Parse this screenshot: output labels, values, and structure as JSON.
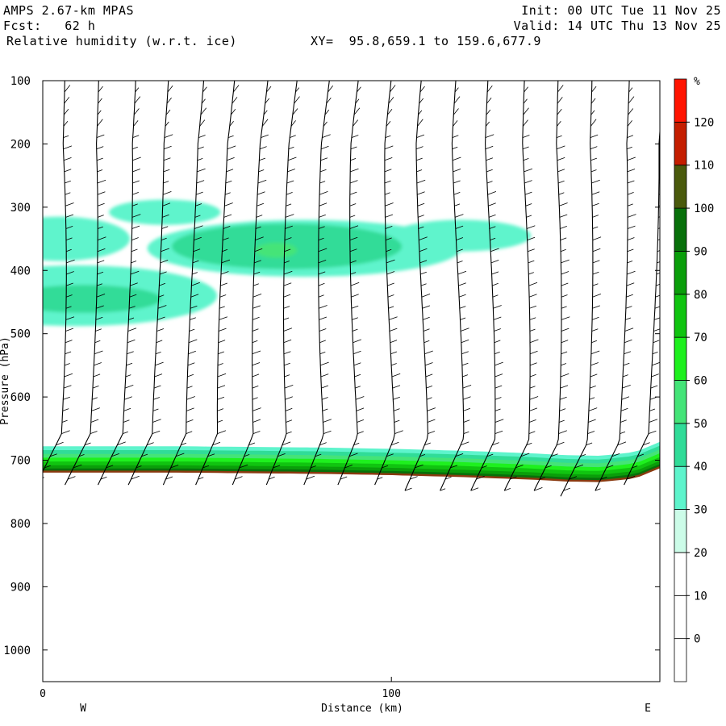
{
  "header": {
    "model": "AMPS 2.67-km MPAS",
    "fcst": "Fcst:   62 h",
    "field": "Relative humidity (w.r.t. ice)",
    "xy": "XY=  95.8,659.1 to 159.6,677.9",
    "init": "Init: 00 UTC Tue 11 Nov 25",
    "valid": "Valid: 14 UTC Thu 13 Nov 25"
  },
  "chart_data": {
    "type": "heatmap",
    "title": "Relative humidity (w.r.t. ice)",
    "xlabel": "Distance (km)",
    "ylabel": "Pressure (hPa)",
    "xlim": [
      0,
      177
    ],
    "ylim": [
      1050,
      100
    ],
    "x_ticks": [
      {
        "value": 0,
        "label": "0"
      },
      {
        "value": 100,
        "label": "100"
      }
    ],
    "y_ticks": [
      {
        "value": 100,
        "label": "100"
      },
      {
        "value": 200,
        "label": "200"
      },
      {
        "value": 300,
        "label": "300"
      },
      {
        "value": 400,
        "label": "400"
      },
      {
        "value": 500,
        "label": "500"
      },
      {
        "value": 600,
        "label": "600"
      },
      {
        "value": 700,
        "label": "700"
      },
      {
        "value": 800,
        "label": "800"
      },
      {
        "value": 900,
        "label": "900"
      },
      {
        "value": 1000,
        "label": "1000"
      }
    ],
    "west_label": "W",
    "east_label": "E",
    "colorbar": {
      "unit": "%",
      "bounds": [
        -10,
        0,
        10,
        20,
        30,
        40,
        50,
        60,
        70,
        80,
        90,
        100,
        110,
        120,
        130
      ],
      "labels": [
        "0",
        "10",
        "20",
        "30",
        "40",
        "50",
        "60",
        "70",
        "80",
        "90",
        "100",
        "110",
        "120"
      ],
      "colors": [
        "#ffffff",
        "#ffffff",
        "#ffffff",
        "#ccfce8",
        "#5ef4cc",
        "#30dc98",
        "#44e478",
        "#1ef01e",
        "#10c410",
        "#0a9e0a",
        "#08700a",
        "#4a5a0c",
        "#c41e00",
        "#ff1400"
      ]
    },
    "terrain": {
      "distance_km": [
        0,
        20,
        40,
        60,
        80,
        100,
        120,
        140,
        150,
        160,
        170,
        177
      ],
      "surface_pressure_hpa": [
        718,
        718,
        718,
        719,
        720,
        722,
        725,
        729,
        732,
        733,
        727,
        711
      ]
    },
    "rh_regions": [
      {
        "rh": 35,
        "center_km": 10,
        "center_hpa": 440,
        "half_width_km": 40,
        "half_depth_hpa": 48
      },
      {
        "rh": 35,
        "center_km": 5,
        "center_hpa": 350,
        "half_width_km": 20,
        "half_depth_hpa": 35
      },
      {
        "rh": 35,
        "center_km": 35,
        "center_hpa": 308,
        "half_width_km": 16,
        "half_depth_hpa": 20
      },
      {
        "rh": 35,
        "center_km": 75,
        "center_hpa": 365,
        "half_width_km": 45,
        "half_depth_hpa": 45
      },
      {
        "rh": 35,
        "center_km": 120,
        "center_hpa": 345,
        "half_width_km": 20,
        "half_depth_hpa": 25
      },
      {
        "rh": 45,
        "center_km": 70,
        "center_hpa": 362,
        "half_width_km": 33,
        "half_depth_hpa": 36
      },
      {
        "rh": 45,
        "center_km": 12,
        "center_hpa": 445,
        "half_width_km": 22,
        "half_depth_hpa": 22
      },
      {
        "rh": 55,
        "center_km": 67,
        "center_hpa": 368,
        "half_width_km": 6,
        "half_depth_hpa": 12
      }
    ],
    "low_level_moist_layer": {
      "top_rh_levels": [
        30,
        40,
        50,
        60,
        70,
        80,
        90
      ],
      "depth_above_surface_hpa": [
        40,
        34,
        28,
        22,
        16,
        10,
        5
      ]
    },
    "wind_barb_profiles_km": [
      4,
      13,
      23,
      32,
      42,
      51,
      61,
      70,
      80,
      89,
      99,
      108,
      118,
      127,
      137,
      146,
      155,
      165,
      174
    ]
  }
}
